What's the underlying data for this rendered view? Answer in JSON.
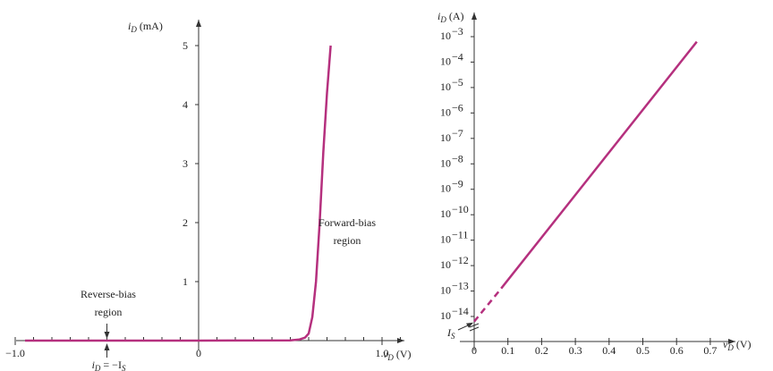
{
  "chart_data": [
    {
      "type": "line",
      "title": "",
      "xlabel": "v_D (V)",
      "ylabel": "i_D (mA)",
      "xlabel_text": "v",
      "xlabel_sub": "D",
      "xlabel_unit": " (V)",
      "ylabel_text": "i",
      "ylabel_sub": "D",
      "ylabel_unit": " (mA)",
      "xlim": [
        -1.2,
        1.3
      ],
      "ylim": [
        -0.1,
        5.5
      ],
      "x_ticks_labeled": [
        {
          "v": -1.0,
          "label": "−1.0"
        },
        {
          "v": 0,
          "label": "0"
        },
        {
          "v": 1.0,
          "label": "1.0"
        }
      ],
      "x_ticks_minor": [
        -1.1,
        -1.0,
        -0.9,
        -0.8,
        -0.7,
        -0.6,
        -0.5,
        -0.4,
        -0.3,
        -0.2,
        -0.1,
        0.1,
        0.2,
        0.3,
        0.4,
        0.5,
        0.6,
        0.7,
        0.8,
        0.9,
        1.0,
        1.1
      ],
      "y_ticks": [
        {
          "v": 1,
          "label": "1"
        },
        {
          "v": 2,
          "label": "2"
        },
        {
          "v": 3,
          "label": "3"
        },
        {
          "v": 4,
          "label": "4"
        },
        {
          "v": 5,
          "label": "5"
        }
      ],
      "series": [
        {
          "color": "#b5307e",
          "x": [
            -1.2,
            0.0,
            0.5,
            0.55,
            0.58,
            0.6,
            0.62,
            0.64,
            0.66,
            0.68,
            0.7,
            0.72
          ],
          "y": [
            0,
            0,
            0.005,
            0.02,
            0.05,
            0.12,
            0.4,
            1.0,
            2.0,
            3.2,
            4.2,
            5.0
          ]
        }
      ],
      "annotations": {
        "forward_line1": "Forward-bias",
        "forward_line2": "region",
        "reverse_line1": "Reverse-bias",
        "reverse_line2": "region",
        "is_text": "i",
        "is_sub": "D",
        "is_rest": " = −I",
        "is_sub2": "S",
        "is_arrow_x": -0.5
      }
    },
    {
      "type": "line",
      "title": "",
      "yscale": "log",
      "xlabel": "v_D (V)",
      "ylabel": "i_D (A)",
      "xlabel_text": "v",
      "xlabel_sub": "D",
      "xlabel_unit": " (V)",
      "ylabel_text": "i",
      "ylabel_sub": "D",
      "ylabel_unit": " (A)",
      "xlim": [
        -0.02,
        0.75
      ],
      "ylim_exp": [
        -15.2,
        -2.2
      ],
      "x_ticks": [
        {
          "v": 0,
          "label": "0"
        },
        {
          "v": 0.1,
          "label": "0.1"
        },
        {
          "v": 0.2,
          "label": "0.2"
        },
        {
          "v": 0.3,
          "label": "0.3"
        },
        {
          "v": 0.4,
          "label": "0.4"
        },
        {
          "v": 0.5,
          "label": "0.5"
        },
        {
          "v": 0.6,
          "label": "0.6"
        },
        {
          "v": 0.7,
          "label": "0.7"
        }
      ],
      "y_ticks": [
        {
          "exp": -14,
          "label": "10",
          "sup": "−14"
        },
        {
          "exp": -13,
          "label": "10",
          "sup": "−13"
        },
        {
          "exp": -12,
          "label": "10",
          "sup": "−12"
        },
        {
          "exp": -11,
          "label": "10",
          "sup": "−11"
        },
        {
          "exp": -10,
          "label": "10",
          "sup": "−10"
        },
        {
          "exp": -9,
          "label": "10",
          "sup": "−9"
        },
        {
          "exp": -8,
          "label": "10",
          "sup": "−8"
        },
        {
          "exp": -7,
          "label": "10",
          "sup": "−7"
        },
        {
          "exp": -6,
          "label": "10",
          "sup": "−6"
        },
        {
          "exp": -5,
          "label": "10",
          "sup": "−5"
        },
        {
          "exp": -4,
          "label": "10",
          "sup": "−4"
        },
        {
          "exp": -3,
          "label": "10",
          "sup": "−3"
        }
      ],
      "series": [
        {
          "color": "#b5307e",
          "dashed_segment": {
            "x": [
              0.0,
              0.08
            ],
            "y_exp": [
              -14.2,
              -12.9
            ]
          },
          "solid_segment": {
            "x": [
              0.08,
              0.66
            ],
            "y_exp": [
              -12.9,
              -3.2
            ]
          }
        }
      ],
      "annotations": {
        "is_label": "I",
        "is_sub": "S",
        "is_exp": -14.2
      }
    }
  ]
}
